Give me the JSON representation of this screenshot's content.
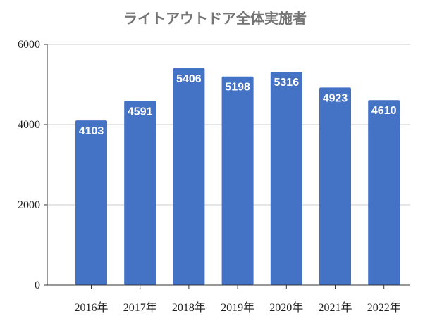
{
  "chart_data": {
    "type": "bar",
    "title": "ライトアウトドア全体実施者",
    "categories": [
      "2016年",
      "2017年",
      "2018年",
      "2019年",
      "2020年",
      "2021年",
      "2022年"
    ],
    "values": [
      4103,
      4591,
      5406,
      5198,
      5316,
      4923,
      4610
    ],
    "series": [
      {
        "values": [
          4103,
          4591,
          5406,
          5198,
          5316,
          4923,
          4610
        ]
      }
    ],
    "ylim": [
      0,
      6000
    ],
    "yticks": [
      0,
      2000,
      4000,
      6000
    ],
    "xlabel": "",
    "ylabel": "",
    "grid": true,
    "legend": "none",
    "data_labels": "inside-top",
    "colors": {
      "bar": "#4472c4",
      "grid": "#cccccc",
      "axis": "#333333",
      "title": "#757575",
      "data_label": "#ffffff"
    }
  }
}
